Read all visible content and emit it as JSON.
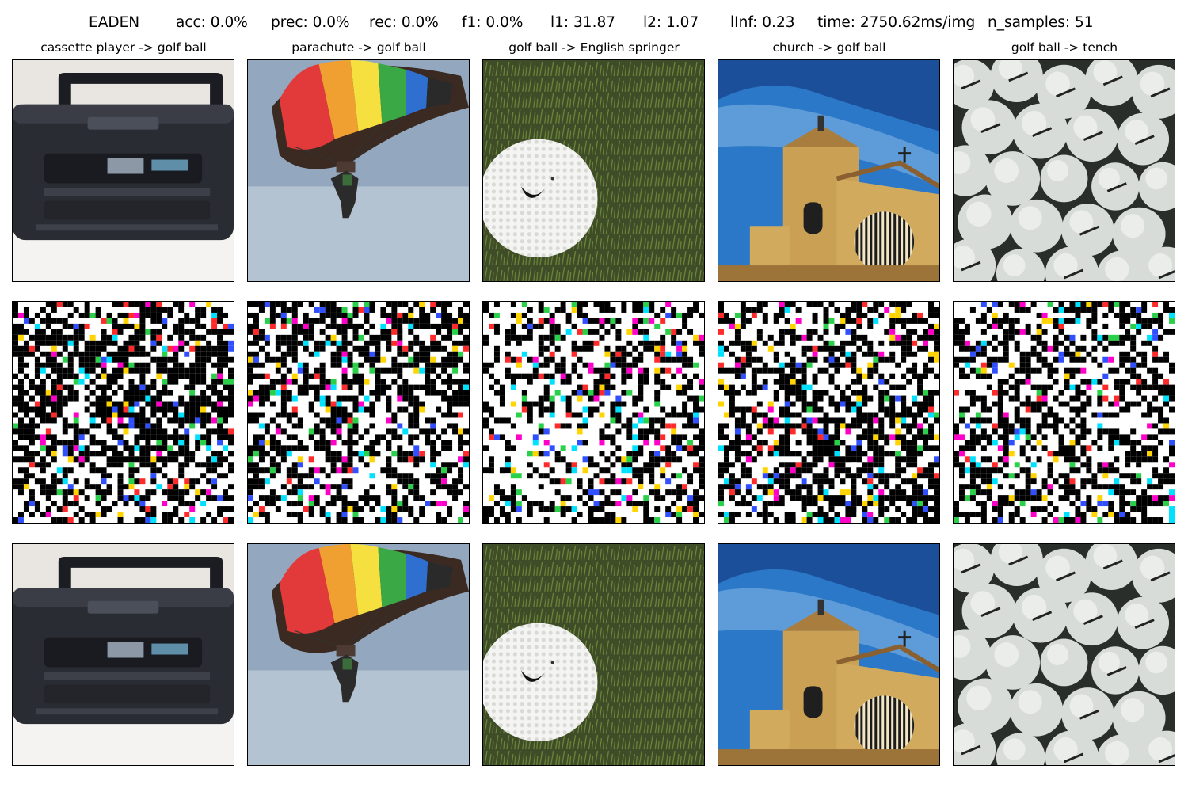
{
  "title": {
    "method": "EADEN",
    "acc": "acc: 0.0%",
    "prec": "prec: 0.0%",
    "rec": "rec: 0.0%",
    "f1": "f1: 0.0%",
    "l1": "l1: 31.87",
    "l2": "l2: 1.07",
    "linf": "lInf: 0.23",
    "time": "time: 2750.62ms/img",
    "n_samples": "n_samples: 51"
  },
  "columns": [
    {
      "title": "cassette player -> golf ball",
      "subject": "cassette-player"
    },
    {
      "title": "parachute -> golf ball",
      "subject": "parachute"
    },
    {
      "title": "golf ball -> English springer",
      "subject": "golf-ball"
    },
    {
      "title": "church -> golf ball",
      "subject": "church"
    },
    {
      "title": "golf ball -> tench",
      "subject": "golf-balls-pile"
    }
  ],
  "rows": [
    "original-image",
    "perturbation",
    "adversarial-image"
  ]
}
